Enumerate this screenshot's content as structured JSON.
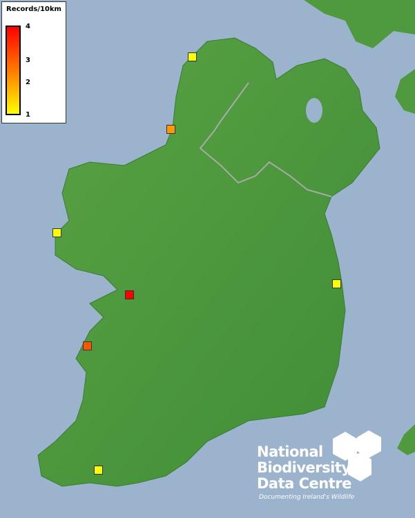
{
  "legend": {
    "title": "Records/10km",
    "ticks": [
      "4",
      "3",
      "2",
      "1"
    ],
    "colors": {
      "high": "#ff0000",
      "mid": "#ff8c00",
      "low": "#ffff00"
    }
  },
  "records": [
    {
      "value": 1,
      "color": "#ffff00"
    },
    {
      "value": 2,
      "color": "#ff9900"
    },
    {
      "value": 1,
      "color": "#ffff00"
    },
    {
      "value": 4,
      "color": "#ff0000"
    },
    {
      "value": 3,
      "color": "#ff5500"
    },
    {
      "value": 1,
      "color": "#ffff00"
    },
    {
      "value": 1,
      "color": "#ffff00"
    }
  ],
  "logo": {
    "line1": "National",
    "line2": "Biodiversity",
    "line3": "Data Centre",
    "tagline": "Documenting Ireland's Wildlife"
  },
  "colors": {
    "sea": "#9bb3cc",
    "land": "#4f9a3e"
  }
}
